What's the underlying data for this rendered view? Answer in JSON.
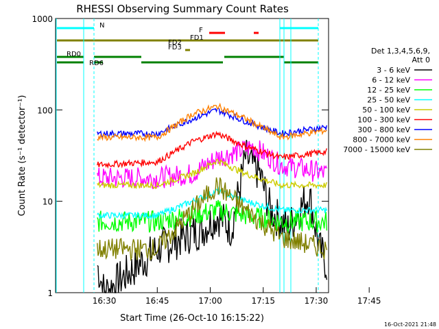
{
  "chart_data": {
    "type": "line",
    "title": "RHESSI Observing Summary Count Rates",
    "xlabel": "Start Time (26-Oct-10 16:15:22)",
    "ylabel": "Count Rate (s⁻¹ detector⁻¹)",
    "yscale": "log",
    "ylim": [
      1,
      1000
    ],
    "xlim_minutes": [
      16.2,
      93.5
    ],
    "x_tick_labels": [
      "16:30",
      "16:45",
      "17:00",
      "17:15",
      "17:30",
      "17:45"
    ],
    "x_tick_minutes": [
      30,
      45,
      60,
      75,
      90,
      105
    ],
    "y_tick_labels": [
      "1",
      "10",
      "100",
      "1000"
    ],
    "y_tick_values": [
      1,
      10,
      100,
      1000
    ],
    "legend_title": "Det 1,3,4,5,6,9,\nAtt 0",
    "legend_placement": "right",
    "timestamp": "16-Oct-2021 21:48",
    "series": [
      {
        "name": "3 - 6 keV",
        "color": "#000000",
        "x": [
          28,
          30,
          45,
          52,
          58,
          62,
          66,
          70,
          74,
          77,
          82,
          88,
          91,
          93
        ],
        "y": [
          2,
          1,
          3,
          4,
          5,
          7,
          5,
          30,
          20,
          8,
          5,
          12,
          3,
          2
        ]
      },
      {
        "name": "6 - 12 keV",
        "color": "#ff00ff",
        "x": [
          28,
          45,
          55,
          62,
          68,
          72,
          80,
          88,
          93
        ],
        "y": [
          18,
          18,
          20,
          30,
          35,
          40,
          25,
          22,
          20
        ]
      },
      {
        "name": "12 - 25 keV",
        "color": "#00ff00",
        "x": [
          28,
          45,
          55,
          62,
          70,
          80,
          93
        ],
        "y": [
          6,
          6,
          7,
          8,
          7,
          6,
          6
        ]
      },
      {
        "name": "25 - 50 keV",
        "color": "#00ffff",
        "x": [
          28,
          45,
          55,
          62,
          70,
          80,
          93
        ],
        "y": [
          7,
          7,
          10,
          13,
          10,
          8,
          8
        ]
      },
      {
        "name": "50 - 100 keV",
        "color": "#cccc00",
        "x": [
          28,
          45,
          55,
          62,
          70,
          80,
          93
        ],
        "y": [
          15,
          15,
          20,
          28,
          20,
          15,
          15
        ]
      },
      {
        "name": "100 - 300 keV",
        "color": "#ff0000",
        "x": [
          28,
          45,
          55,
          62,
          70,
          80,
          93
        ],
        "y": [
          25,
          27,
          45,
          55,
          40,
          30,
          35
        ]
      },
      {
        "name": "300 - 800 keV",
        "color": "#0000ff",
        "x": [
          28,
          45,
          55,
          62,
          70,
          80,
          93
        ],
        "y": [
          55,
          55,
          80,
          100,
          75,
          55,
          65
        ]
      },
      {
        "name": "800 - 7000 keV",
        "color": "#ff8000",
        "x": [
          28,
          45,
          55,
          62,
          70,
          80,
          93
        ],
        "y": [
          50,
          50,
          90,
          110,
          80,
          50,
          60
        ]
      },
      {
        "name": "7000 - 15000 keV",
        "color": "#808000",
        "x": [
          28,
          45,
          55,
          62,
          70,
          80,
          93
        ],
        "y": [
          3,
          3,
          8,
          15,
          8,
          4,
          3
        ]
      }
    ],
    "flags": [
      {
        "label": "N",
        "color": "#00ffff"
      },
      {
        "label": "F",
        "color": "#ff0000"
      },
      {
        "label": "FD1",
        "color": "#808000"
      },
      {
        "label": "FD2",
        "color": "#808000"
      },
      {
        "label": "FD3",
        "color": "#808000"
      },
      {
        "label": "RD0",
        "color": "#008000"
      },
      {
        "label": "RD6",
        "color": "#008000"
      }
    ]
  }
}
